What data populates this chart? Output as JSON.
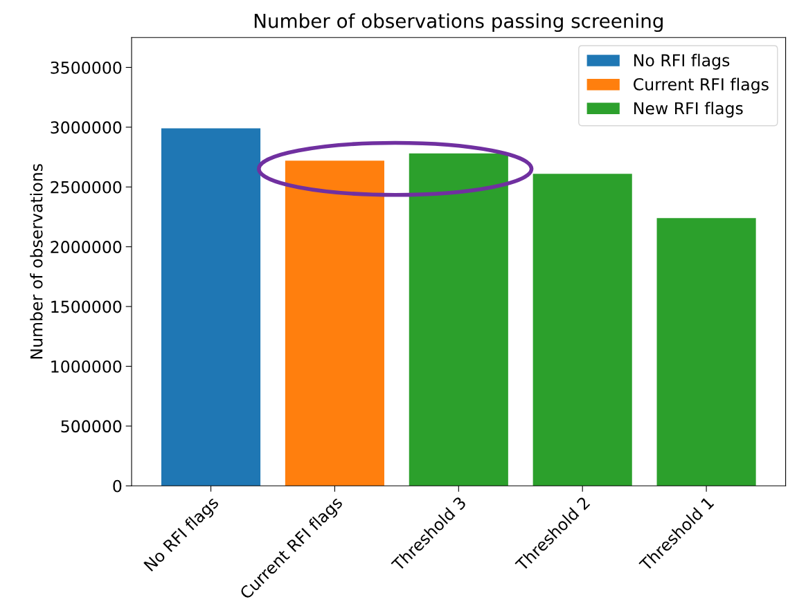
{
  "chart_data": {
    "type": "bar",
    "title": "Number of observations passing screening",
    "ylabel": "Number of observations",
    "categories": [
      "No RFI flags",
      "Current RFI flags",
      "Threshold 3",
      "Threshold 2",
      "Threshold 1"
    ],
    "series": [
      {
        "name": "No RFI flags",
        "color": "#1f77b4",
        "values": [
          2990000,
          null,
          null,
          null,
          null
        ]
      },
      {
        "name": "Current RFI flags",
        "color": "#ff7f0e",
        "values": [
          null,
          2720000,
          null,
          null,
          null
        ]
      },
      {
        "name": "New RFI flags",
        "color": "#2ca02c",
        "values": [
          null,
          null,
          2780000,
          2610000,
          2240000
        ]
      }
    ],
    "ylim": [
      0,
      3750000
    ],
    "yticks": [
      0,
      500000,
      1000000,
      1500000,
      2000000,
      2500000,
      3000000,
      3500000
    ],
    "legend": "top right",
    "grid": false
  }
}
